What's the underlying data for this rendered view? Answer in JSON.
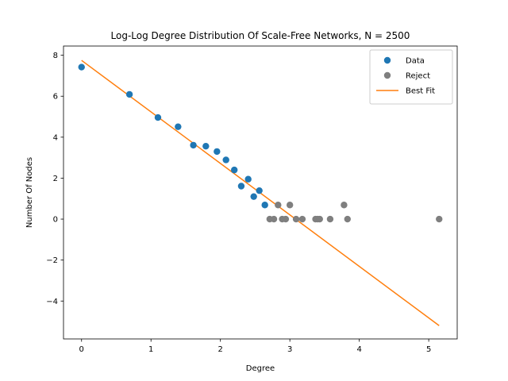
{
  "chart_data": {
    "type": "scatter",
    "title": "Log-Log Degree Distribution Of Scale-Free Networks, N = 2500",
    "xlabel": "Degree",
    "ylabel": "Number Of Nodes",
    "xlim": [
      -0.26,
      5.41
    ],
    "ylim": [
      -5.85,
      8.45
    ],
    "xticks": [
      0,
      1,
      2,
      3,
      4,
      5
    ],
    "yticks": [
      -4,
      -2,
      0,
      2,
      4,
      6,
      8
    ],
    "grid": false,
    "legend_position": "top-right",
    "series": [
      {
        "name": "Data",
        "kind": "scatter",
        "color": "#1f77b4",
        "x": [
          0.0,
          0.69,
          1.1,
          1.39,
          1.61,
          1.79,
          1.95,
          2.08,
          2.2,
          2.3,
          2.4,
          2.48,
          2.56,
          2.64
        ],
        "y": [
          7.42,
          6.09,
          4.96,
          4.51,
          3.61,
          3.56,
          3.3,
          2.89,
          2.4,
          1.61,
          1.95,
          1.1,
          1.39,
          0.69
        ]
      },
      {
        "name": "Reject",
        "kind": "scatter",
        "color": "#7f7f7f",
        "x": [
          2.71,
          2.77,
          2.83,
          2.89,
          2.94,
          3.0,
          3.09,
          3.18,
          3.37,
          3.4,
          3.43,
          3.58,
          3.78,
          3.83,
          5.15
        ],
        "y": [
          0.0,
          0.0,
          0.69,
          0.0,
          0.0,
          0.69,
          0.0,
          0.0,
          0.0,
          0.0,
          0.0,
          0.0,
          0.69,
          0.0,
          0.0
        ]
      },
      {
        "name": "Best Fit",
        "kind": "line",
        "color": "#ff7f0e",
        "x": [
          0.0,
          5.15
        ],
        "y": [
          7.75,
          -5.2
        ]
      }
    ]
  }
}
